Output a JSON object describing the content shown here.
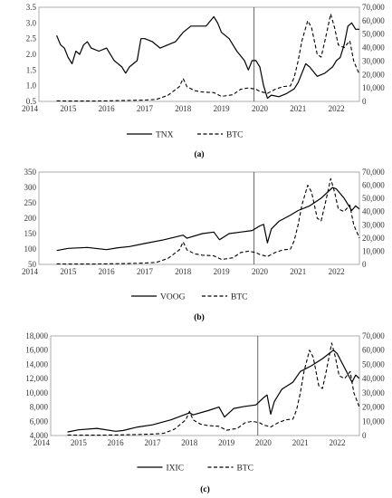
{
  "chart_data": [
    {
      "type": "line",
      "caption": "(a)",
      "x_ticks": [
        "2014",
        "2015",
        "2016",
        "2017",
        "2018",
        "2019",
        "2020",
        "2021",
        "2022"
      ],
      "y_left_ticks": [
        "0.5",
        "1.0",
        "1.5",
        "2.0",
        "2.5",
        "3.0",
        "3.5"
      ],
      "y_right_ticks": [
        "0",
        "10,000",
        "20,000",
        "30,000",
        "40,000",
        "50,000",
        "60,000",
        "70,000"
      ],
      "ylim_left": [
        0.5,
        3.5
      ],
      "ylim_right": [
        0,
        70000
      ],
      "xlim": [
        2014,
        2022.6
      ],
      "vline_x": 2019.85,
      "legend_position": "bottom-center",
      "series": [
        {
          "name": "TNX",
          "axis": "left",
          "style": "solid",
          "x": [
            2014.7,
            2014.8,
            2014.9,
            2015.0,
            2015.1,
            2015.2,
            2015.3,
            2015.4,
            2015.5,
            2015.6,
            2015.8,
            2016.0,
            2016.2,
            2016.4,
            2016.5,
            2016.6,
            2016.8,
            2016.9,
            2017.0,
            2017.2,
            2017.4,
            2017.6,
            2017.8,
            2018.0,
            2018.2,
            2018.4,
            2018.6,
            2018.8,
            2018.9,
            2019.0,
            2019.2,
            2019.4,
            2019.6,
            2019.7,
            2019.8,
            2019.9,
            2020.0,
            2020.1,
            2020.2,
            2020.3,
            2020.5,
            2020.7,
            2020.9,
            2021.0,
            2021.1,
            2021.2,
            2021.3,
            2021.5,
            2021.7,
            2021.8,
            2021.9,
            2022.0,
            2022.1,
            2022.2,
            2022.3,
            2022.4,
            2022.5,
            2022.6
          ],
          "y": [
            2.6,
            2.3,
            2.2,
            1.9,
            1.7,
            2.1,
            2.0,
            2.3,
            2.4,
            2.2,
            2.1,
            2.2,
            1.8,
            1.6,
            1.4,
            1.6,
            1.8,
            2.5,
            2.5,
            2.4,
            2.2,
            2.3,
            2.4,
            2.7,
            2.9,
            2.9,
            2.9,
            3.2,
            3.0,
            2.7,
            2.5,
            2.1,
            1.8,
            1.5,
            1.8,
            1.8,
            1.6,
            1.0,
            0.6,
            0.7,
            0.65,
            0.75,
            0.9,
            1.1,
            1.4,
            1.7,
            1.6,
            1.3,
            1.4,
            1.5,
            1.6,
            1.8,
            1.9,
            2.3,
            2.9,
            3.0,
            2.8,
            2.8
          ]
        },
        {
          "name": "BTC",
          "axis": "right",
          "style": "dashed",
          "x": [
            2014.7,
            2015.0,
            2015.5,
            2016.0,
            2016.5,
            2017.0,
            2017.3,
            2017.6,
            2017.9,
            2018.0,
            2018.1,
            2018.3,
            2018.5,
            2018.8,
            2019.0,
            2019.3,
            2019.5,
            2019.7,
            2019.9,
            2020.0,
            2020.2,
            2020.4,
            2020.6,
            2020.8,
            2020.9,
            2021.0,
            2021.1,
            2021.25,
            2021.35,
            2021.5,
            2021.6,
            2021.7,
            2021.85,
            2021.95,
            2022.05,
            2022.2,
            2022.35,
            2022.45,
            2022.6
          ],
          "y": [
            400,
            250,
            250,
            400,
            650,
            1000,
            1500,
            4500,
            11000,
            17000,
            11000,
            8000,
            7000,
            6500,
            3700,
            5000,
            9000,
            10000,
            9000,
            7500,
            6000,
            9000,
            11000,
            11500,
            18000,
            30000,
            45000,
            60000,
            55000,
            35000,
            33000,
            45000,
            65000,
            55000,
            42000,
            40000,
            45000,
            30000,
            20000
          ]
        }
      ]
    },
    {
      "type": "line",
      "caption": "(b)",
      "x_ticks": [
        "2014",
        "2015",
        "2016",
        "2017",
        "2018",
        "2019",
        "2020",
        "2021",
        "2022"
      ],
      "y_left_ticks": [
        "50",
        "100",
        "150",
        "200",
        "250",
        "300",
        "350"
      ],
      "y_right_ticks": [
        "0",
        "10,000",
        "20,000",
        "30,000",
        "40,000",
        "50,000",
        "60,000",
        "70,000"
      ],
      "ylim_left": [
        50,
        350
      ],
      "ylim_right": [
        0,
        70000
      ],
      "xlim": [
        2014,
        2022.6
      ],
      "vline_x": 2019.85,
      "legend_position": "bottom-center",
      "series": [
        {
          "name": "VOOG",
          "axis": "left",
          "style": "solid",
          "x": [
            2014.7,
            2015.0,
            2015.5,
            2016.0,
            2016.3,
            2016.6,
            2017.0,
            2017.5,
            2018.0,
            2018.1,
            2018.5,
            2018.8,
            2018.95,
            2019.2,
            2019.5,
            2019.8,
            2020.0,
            2020.1,
            2020.2,
            2020.3,
            2020.5,
            2020.8,
            2021.0,
            2021.3,
            2021.6,
            2021.9,
            2022.0,
            2022.2,
            2022.4,
            2022.5,
            2022.6
          ],
          "y": [
            95,
            102,
            105,
            98,
            104,
            108,
            118,
            130,
            145,
            135,
            150,
            155,
            130,
            150,
            155,
            160,
            175,
            180,
            120,
            165,
            190,
            210,
            225,
            240,
            265,
            300,
            295,
            265,
            225,
            240,
            230
          ]
        },
        {
          "name": "BTC",
          "axis": "right",
          "style": "dashed",
          "x": [
            2014.7,
            2015.0,
            2015.5,
            2016.0,
            2016.5,
            2017.0,
            2017.3,
            2017.6,
            2017.9,
            2018.0,
            2018.1,
            2018.3,
            2018.5,
            2018.8,
            2019.0,
            2019.3,
            2019.5,
            2019.7,
            2019.9,
            2020.0,
            2020.2,
            2020.4,
            2020.6,
            2020.8,
            2020.9,
            2021.0,
            2021.1,
            2021.25,
            2021.35,
            2021.5,
            2021.6,
            2021.7,
            2021.85,
            2021.95,
            2022.05,
            2022.2,
            2022.35,
            2022.45,
            2022.6
          ],
          "y": [
            400,
            250,
            250,
            400,
            650,
            1000,
            1500,
            4500,
            11000,
            17000,
            11000,
            8000,
            7000,
            6500,
            3700,
            5000,
            9000,
            10000,
            9000,
            7500,
            6000,
            9000,
            11000,
            11500,
            18000,
            30000,
            45000,
            60000,
            55000,
            35000,
            33000,
            45000,
            65000,
            55000,
            42000,
            40000,
            45000,
            30000,
            20000
          ]
        }
      ]
    },
    {
      "type": "line",
      "caption": "(c)",
      "x_ticks": [
        "2014",
        "2015",
        "2016",
        "2017",
        "2018",
        "2019",
        "2020",
        "2021",
        "2022"
      ],
      "y_left_ticks": [
        "4,000",
        "6,000",
        "8,000",
        "10,000",
        "12,000",
        "14,000",
        "16,000",
        "18,000"
      ],
      "y_right_ticks": [
        "0",
        "10,000",
        "20,000",
        "30,000",
        "40,000",
        "50,000",
        "60,000",
        "70,000"
      ],
      "ylim_left": [
        4000,
        18000
      ],
      "ylim_right": [
        0,
        70000
      ],
      "xlim": [
        2014,
        2022.6
      ],
      "vline_x": 2019.85,
      "legend_position": "bottom-center",
      "series": [
        {
          "name": "IXIC",
          "axis": "left",
          "style": "solid",
          "x": [
            2014.7,
            2015.0,
            2015.5,
            2016.0,
            2016.2,
            2016.6,
            2017.0,
            2017.5,
            2018.0,
            2018.1,
            2018.5,
            2018.8,
            2018.95,
            2019.2,
            2019.5,
            2019.8,
            2020.0,
            2020.1,
            2020.2,
            2020.3,
            2020.5,
            2020.8,
            2021.0,
            2021.3,
            2021.6,
            2021.9,
            2022.0,
            2022.2,
            2022.4,
            2022.5,
            2022.6
          ],
          "y": [
            4500,
            4800,
            5000,
            4600,
            4700,
            5200,
            5500,
            6200,
            7200,
            6900,
            7500,
            8000,
            6600,
            7800,
            8100,
            8300,
            9300,
            9700,
            7000,
            8800,
            10500,
            11500,
            13000,
            13800,
            14800,
            16000,
            15500,
            13500,
            11500,
            12500,
            12000
          ]
        },
        {
          "name": "BTC",
          "axis": "right",
          "style": "dashed",
          "x": [
            2014.7,
            2015.0,
            2015.5,
            2016.0,
            2016.5,
            2017.0,
            2017.3,
            2017.6,
            2017.9,
            2018.0,
            2018.1,
            2018.3,
            2018.5,
            2018.8,
            2019.0,
            2019.3,
            2019.5,
            2019.7,
            2019.9,
            2020.0,
            2020.2,
            2020.4,
            2020.6,
            2020.8,
            2020.9,
            2021.0,
            2021.1,
            2021.25,
            2021.35,
            2021.5,
            2021.6,
            2021.7,
            2021.85,
            2021.95,
            2022.05,
            2022.2,
            2022.35,
            2022.45,
            2022.6
          ],
          "y": [
            400,
            250,
            250,
            400,
            650,
            1000,
            1500,
            4500,
            11000,
            17000,
            11000,
            8000,
            7000,
            6500,
            3700,
            5000,
            9000,
            10000,
            9000,
            7500,
            6000,
            9000,
            11000,
            11500,
            18000,
            30000,
            45000,
            60000,
            55000,
            35000,
            33000,
            45000,
            65000,
            55000,
            42000,
            40000,
            45000,
            30000,
            20000
          ]
        }
      ]
    }
  ]
}
